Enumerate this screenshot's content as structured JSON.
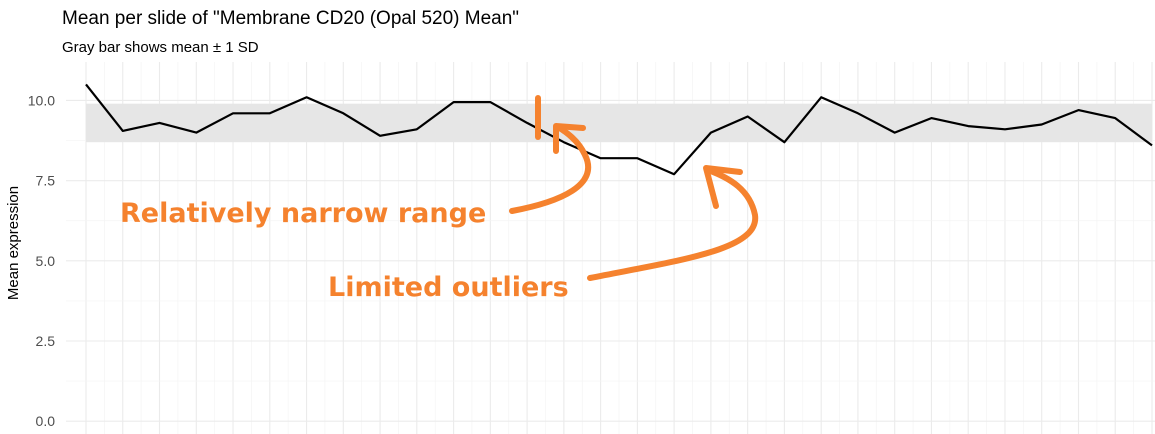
{
  "chart_data": {
    "type": "line",
    "title": "Mean per slide of \"Membrane CD20 (Opal 520) Mean\"",
    "subtitle": "Gray bar shows mean ± 1 SD",
    "xlabel": "",
    "ylabel": "Mean expression",
    "ylim": [
      -0.4,
      11.2
    ],
    "yticks": [
      "0.0",
      "2.5",
      "5.0",
      "7.5",
      "10.0"
    ],
    "grid": true,
    "band": {
      "lower": 8.7,
      "upper": 9.9
    },
    "values": [
      10.5,
      9.05,
      9.3,
      9.0,
      9.6,
      9.6,
      10.1,
      9.6,
      8.9,
      9.1,
      9.95,
      9.95,
      9.3,
      8.7,
      8.2,
      8.2,
      7.7,
      9.0,
      9.5,
      8.7,
      10.1,
      9.6,
      9.0,
      9.45,
      9.2,
      9.1,
      9.25,
      9.7,
      9.45,
      8.6
    ],
    "annotations": [
      {
        "text": "Relatively narrow range",
        "color": "#f5822e"
      },
      {
        "text": "Limited outliers",
        "color": "#f5822e"
      }
    ],
    "line_color": "#000000",
    "band_color": "#e6e6e6"
  }
}
